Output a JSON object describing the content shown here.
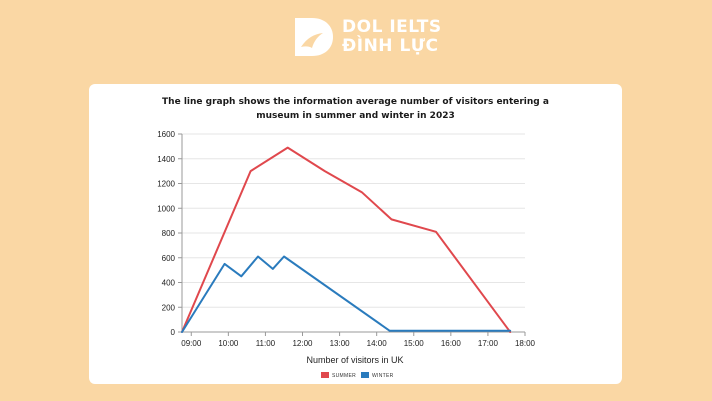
{
  "brand": {
    "line1": "DOL IELTS",
    "line2": "ĐÌNH LỰC"
  },
  "colors": {
    "summer": "#e0484d",
    "winter": "#2a7bbd",
    "background": "#fad7a4"
  },
  "chart_data": {
    "type": "line",
    "title": [
      "The line graph shows the information average number of visitors entering a",
      "museum in summer and winter in 2023"
    ],
    "xlabel": "Number of visitors in UK",
    "ylabel": "",
    "xlim": [
      8.75,
      18.0
    ],
    "ylim": [
      0,
      1600
    ],
    "grid": true,
    "legend_position": "bottom",
    "x_ticks": [
      9,
      10,
      11,
      12,
      13,
      14,
      15,
      16,
      17,
      18
    ],
    "x_tick_labels": [
      "09:00",
      "10:00",
      "11:00",
      "12:00",
      "13:00",
      "14:00",
      "15:00",
      "16:00",
      "17:00",
      "18:00"
    ],
    "y_ticks": [
      0,
      200,
      400,
      600,
      800,
      1000,
      1200,
      1400,
      1600
    ],
    "series": [
      {
        "name": "SUMMER",
        "color": "#e0484d",
        "points": [
          [
            8.75,
            0
          ],
          [
            10.6,
            1300
          ],
          [
            11.6,
            1490
          ],
          [
            12.6,
            1300
          ],
          [
            13.6,
            1130
          ],
          [
            14.4,
            910
          ],
          [
            15.6,
            810
          ],
          [
            17.6,
            0
          ]
        ]
      },
      {
        "name": "WINTER",
        "color": "#2a7bbd",
        "points": [
          [
            8.75,
            0
          ],
          [
            9.9,
            550
          ],
          [
            10.35,
            450
          ],
          [
            10.8,
            610
          ],
          [
            11.2,
            510
          ],
          [
            11.5,
            610
          ],
          [
            14.35,
            10
          ],
          [
            17.6,
            10
          ]
        ]
      }
    ]
  }
}
